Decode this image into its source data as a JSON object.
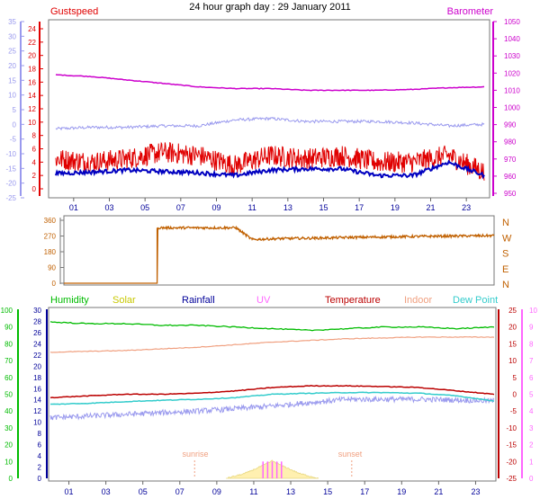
{
  "title": "24 hour graph day : 29 January 2011",
  "x_ticks": [
    "01",
    "03",
    "05",
    "07",
    "09",
    "11",
    "13",
    "15",
    "17",
    "19",
    "21",
    "23"
  ],
  "sun_labels": {
    "sunrise": "sunrise",
    "sunset": "sunset"
  },
  "colors": {
    "gust": "#e00000",
    "wind": "#0000c0",
    "baro": "#cc00cc",
    "dewlike": "#9999ee",
    "dir": "#c06000",
    "humidity": "#00bb00",
    "solar": "#c8c800",
    "rainfall": "#000099",
    "uv": "#ff66ff",
    "temperature": "#bb0000",
    "indoor": "#f0a080",
    "dewpoint": "#33cccc"
  },
  "chart_data": [
    {
      "type": "line",
      "title": "",
      "series": [
        {
          "name": "Gustspeed",
          "axis": "left-red",
          "x_hours": [
            0,
            2,
            4,
            6,
            8,
            10,
            12,
            14,
            16,
            18,
            20,
            22,
            24
          ],
          "values": [
            4.5,
            4.0,
            4.5,
            5.5,
            5.0,
            3.5,
            5.0,
            4.5,
            5.0,
            4.0,
            4.0,
            5.0,
            2.5
          ]
        },
        {
          "name": "",
          "axis": "left-red",
          "x_hours": [
            0,
            2,
            4,
            6,
            8,
            10,
            12,
            14,
            16,
            18,
            20,
            22,
            24
          ],
          "values": [
            2.3,
            2.5,
            2.8,
            2.6,
            2.4,
            2.0,
            2.8,
            3.0,
            3.0,
            2.0,
            2.0,
            4.0,
            2.0
          ]
        },
        {
          "name": "Barometer",
          "axis": "right-magenta",
          "x_hours": [
            0,
            2,
            4,
            6,
            8,
            10,
            12,
            14,
            16,
            18,
            20,
            22,
            24
          ],
          "values": [
            1019,
            1018,
            1016,
            1014,
            1012,
            1011,
            1011,
            1010,
            1010,
            1010,
            1010.5,
            1011.5,
            1012
          ]
        },
        {
          "name": "",
          "axis": "left-blue",
          "x_hours": [
            0,
            2,
            4,
            6,
            8,
            10,
            12,
            14,
            16,
            18,
            20,
            22,
            24
          ],
          "values": [
            -1.5,
            -1,
            -1,
            -0.5,
            -0.5,
            1.5,
            2,
            1,
            1,
            1,
            0.5,
            -0.5,
            0
          ]
        }
      ],
      "axes": {
        "left_blue": {
          "ticks": [
            35,
            30,
            25,
            20,
            15,
            10,
            5,
            0,
            -5,
            -10,
            -15,
            -20,
            -25
          ]
        },
        "left_red": {
          "ticks": [
            24,
            22,
            20,
            18,
            16,
            14,
            12,
            10,
            8,
            6,
            4,
            2,
            0
          ]
        },
        "right_magenta": {
          "ticks": [
            1050,
            1040,
            1030,
            1020,
            1010,
            1000,
            990,
            980,
            970,
            960,
            950
          ]
        }
      }
    },
    {
      "type": "line",
      "title": "",
      "series": [
        {
          "name": "",
          "x_hours": [
            0,
            5.2,
            5.2,
            9.6,
            10.5,
            12,
            14,
            16,
            18,
            20,
            22,
            24
          ],
          "values": [
            0,
            0,
            317,
            317,
            250,
            255,
            258,
            262,
            265,
            268,
            270,
            272
          ]
        }
      ],
      "axes": {
        "left": {
          "ticks": [
            360,
            270,
            180,
            90,
            0
          ]
        },
        "right_compass": [
          "N",
          "W",
          "S",
          "E",
          "N"
        ]
      }
    },
    {
      "type": "line",
      "title": "",
      "legend": [
        "Humidity",
        "Solar",
        "Rainfall",
        "UV",
        "Temperature",
        "Indoor",
        "Dew Point"
      ],
      "series": [
        {
          "name": "Humidity",
          "axis": "far-left-green",
          "x_hours": [
            0,
            2,
            4,
            6,
            8,
            10,
            12,
            14,
            16,
            18,
            20,
            22,
            24
          ],
          "values": [
            93,
            92,
            92,
            91,
            91,
            90,
            89,
            88,
            89,
            90,
            90,
            89,
            90
          ]
        },
        {
          "name": "Indoor",
          "axis": "right-temperature",
          "x_hours": [
            0,
            4,
            8,
            12,
            16,
            20,
            24
          ],
          "values": [
            12.5,
            13,
            14,
            15.5,
            16.5,
            17,
            17
          ]
        },
        {
          "name": "Temperature",
          "axis": "right-temperature",
          "x_hours": [
            0,
            2,
            4,
            6,
            8,
            10,
            12,
            14,
            16,
            18,
            20,
            22,
            24
          ],
          "values": [
            -1,
            -0.5,
            0,
            0,
            0.3,
            1,
            2,
            2.5,
            2.5,
            2.3,
            2,
            1,
            0
          ]
        },
        {
          "name": "Dew Point",
          "axis": "right-temperature",
          "x_hours": [
            0,
            2,
            4,
            6,
            8,
            10,
            12,
            14,
            16,
            18,
            20,
            22,
            24
          ],
          "values": [
            -3,
            -2.7,
            -2.2,
            -1.8,
            -1.5,
            -1,
            0,
            0.3,
            0.5,
            0.5,
            0.3,
            -0.5,
            -2
          ]
        },
        {
          "name": "",
          "axis": "right-temperature",
          "x_hours": [
            0,
            2,
            4,
            6,
            8,
            10,
            12,
            14,
            16,
            18,
            20,
            22,
            24
          ],
          "values": [
            -7,
            -6.5,
            -6,
            -5.5,
            -5,
            -4.3,
            -3.5,
            -2.5,
            -1.5,
            -1.5,
            -1.5,
            -1.7,
            -2
          ]
        },
        {
          "name": "Solar",
          "x_hours": [
            9.5,
            10.5,
            11.5,
            12,
            12.5,
            13.5,
            14.5
          ],
          "values": [
            0,
            40,
            110,
            150,
            110,
            40,
            0
          ]
        },
        {
          "name": "UV",
          "x_hours": [
            11.5,
            12.5
          ],
          "values": [
            1,
            1
          ]
        }
      ],
      "sunrise_hour": 7.8,
      "sunset_hour": 16.3,
      "axes": {
        "far_left_green": {
          "ticks": [
            100,
            90,
            80,
            70,
            60,
            50,
            40,
            30,
            20,
            10,
            0
          ]
        },
        "left_blue": {
          "ticks": [
            30,
            28,
            26,
            24,
            22,
            20,
            18,
            16,
            14,
            12,
            10,
            8,
            6,
            4,
            2,
            0
          ]
        },
        "right_temperature": {
          "ticks": [
            25,
            20,
            15,
            10,
            5,
            0,
            -5,
            -10,
            -15,
            -20,
            -25
          ]
        },
        "far_right_uv": {
          "ticks": [
            10,
            9,
            8,
            7,
            6,
            5,
            4,
            3,
            2,
            1,
            0
          ]
        }
      }
    }
  ]
}
